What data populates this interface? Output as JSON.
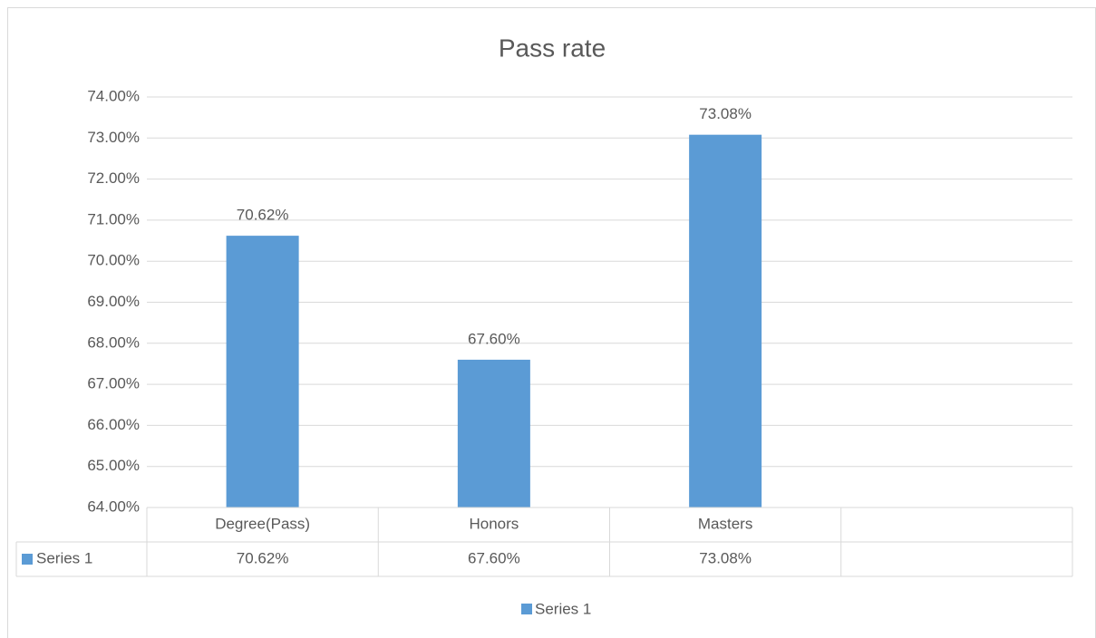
{
  "chart_data": {
    "type": "bar",
    "title": "Pass rate",
    "categories": [
      "Degree(Pass)",
      "Honors",
      "Masters",
      null
    ],
    "series": [
      {
        "name": "Series 1",
        "color": "#5b9bd5",
        "values": [
          70.62,
          67.6,
          73.08,
          null
        ],
        "value_labels": [
          "70.62%",
          "67.60%",
          "73.08%",
          null
        ]
      }
    ],
    "ylim": [
      64,
      74
    ],
    "yticks": [
      {
        "value": 64,
        "label": "64.00%"
      },
      {
        "value": 65,
        "label": "65.00%"
      },
      {
        "value": 66,
        "label": "66.00%"
      },
      {
        "value": 67,
        "label": "67.00%"
      },
      {
        "value": 68,
        "label": "68.00%"
      },
      {
        "value": 69,
        "label": "69.00%"
      },
      {
        "value": 70,
        "label": "70.00%"
      },
      {
        "value": 71,
        "label": "71.00%"
      },
      {
        "value": 72,
        "label": "72.00%"
      },
      {
        "value": 73,
        "label": "73.00%"
      },
      {
        "value": 74,
        "label": "74.00%"
      }
    ],
    "grid": true,
    "data_table": true,
    "legend": "bottom"
  }
}
